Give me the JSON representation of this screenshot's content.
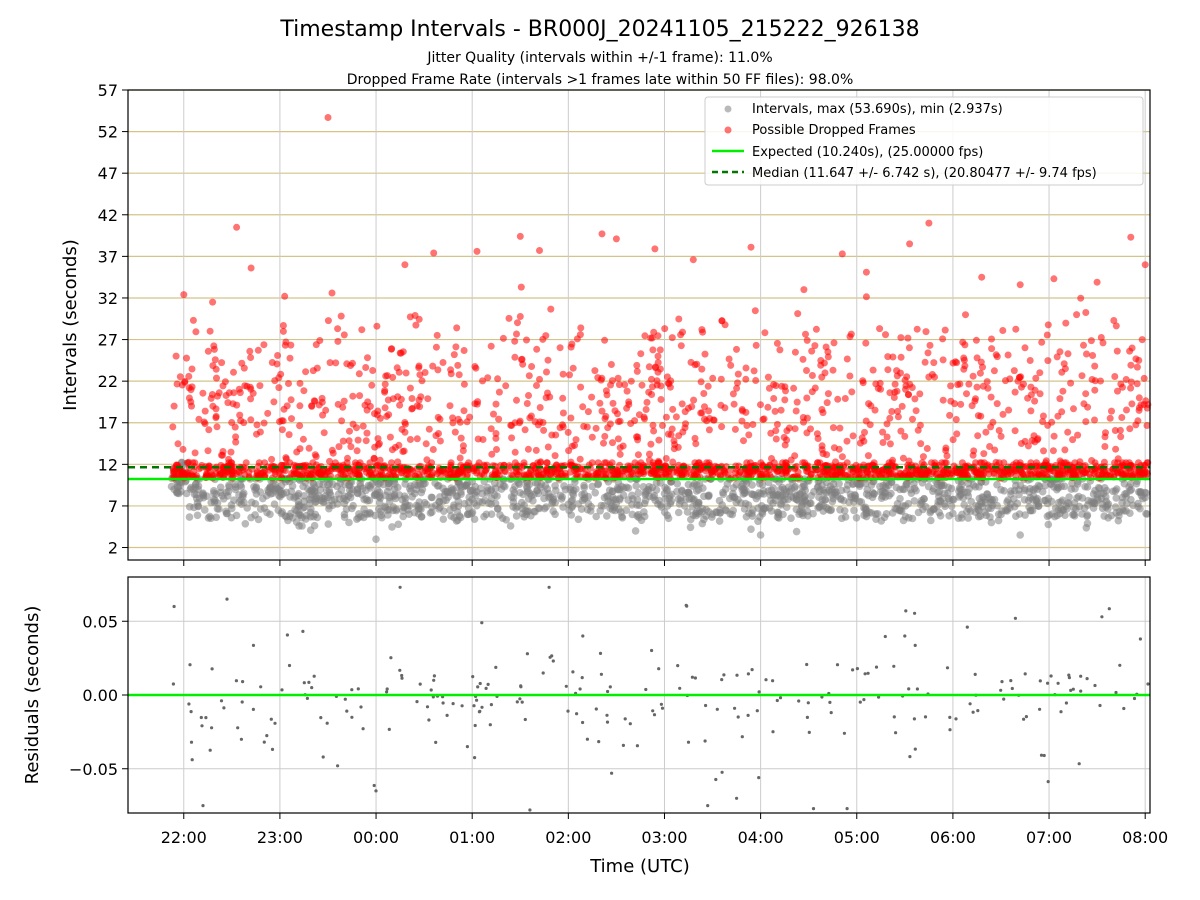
{
  "chart_data": [
    {
      "type": "scatter",
      "title": "Timestamp Intervals - BR000J_20241105_215222_926138",
      "subtitle_lines": [
        "Jitter Quality (intervals within +/-1 frame): 11.0%",
        "Dropped Frame Rate (intervals >1 frames late within 50 FF files): 98.0%"
      ],
      "ylabel": "Intervals (seconds)",
      "ylim": [
        0.5,
        57
      ],
      "yticks": [
        2,
        7,
        12,
        17,
        22,
        27,
        32,
        37,
        42,
        47,
        52,
        57
      ],
      "grid": true,
      "legend_placement": "top-right",
      "legend": [
        "Intervals, max (53.690s), min (2.937s)",
        "Possible Dropped Frames",
        "Expected (10.240s), (25.00000 fps)",
        "Median (11.647 +/- 6.742 s), (20.80477 +/- 9.74 fps)"
      ],
      "expected_interval": 10.24,
      "median_interval": 11.647,
      "max_interval": 53.69,
      "min_interval": 2.937,
      "x_start_hour": 21.87,
      "x_end_hour": 32.03,
      "colors": {
        "intervals": "#808080",
        "dropped": "#ff0000",
        "expected": "#00ee00",
        "median": "#007700"
      },
      "series": [
        {
          "name": "Intervals, max (53.690s), min (2.937s)",
          "sample": [
            [
              21.9,
              9.0
            ],
            [
              22.2,
              8.4
            ],
            [
              22.5,
              6.7
            ],
            [
              22.7,
              5.6
            ],
            [
              22.9,
              9.2
            ],
            [
              23.2,
              4.6
            ],
            [
              23.5,
              8.0
            ],
            [
              23.8,
              5.4
            ],
            [
              24.0,
              3.0
            ],
            [
              24.4,
              6.2
            ],
            [
              24.7,
              5.4
            ],
            [
              25.0,
              7.8
            ],
            [
              25.4,
              4.6
            ],
            [
              25.7,
              6.7
            ],
            [
              26.0,
              7.2
            ],
            [
              26.4,
              5.8
            ],
            [
              26.7,
              4.0
            ],
            [
              27.0,
              8.5
            ],
            [
              27.3,
              5.9
            ],
            [
              27.6,
              7.1
            ],
            [
              27.9,
              4.2
            ],
            [
              28.0,
              3.5
            ],
            [
              28.4,
              6.0
            ],
            [
              28.8,
              8.2
            ],
            [
              29.2,
              5.4
            ],
            [
              29.6,
              7.6
            ],
            [
              30.0,
              6.1
            ],
            [
              30.4,
              5.0
            ],
            [
              30.7,
              3.5
            ],
            [
              31.1,
              7.4
            ],
            [
              31.4,
              4.9
            ],
            [
              31.8,
              6.4
            ],
            [
              32.0,
              8.0
            ]
          ]
        },
        {
          "name": "Possible Dropped Frames",
          "sample": [
            [
              21.9,
              19
            ],
            [
              22.0,
              32.4
            ],
            [
              22.1,
              29.3
            ],
            [
              22.3,
              31.5
            ],
            [
              22.55,
              40.5
            ],
            [
              22.7,
              35.6
            ],
            [
              23.05,
              32.2
            ],
            [
              23.5,
              53.69
            ],
            [
              23.6,
              28.3
            ],
            [
              24.3,
              36
            ],
            [
              24.6,
              37.4
            ],
            [
              25.05,
              37.6
            ],
            [
              25.5,
              39.4
            ],
            [
              25.7,
              37.7
            ],
            [
              26.35,
              39.7
            ],
            [
              26.5,
              39.1
            ],
            [
              26.9,
              37.9
            ],
            [
              27.3,
              36.6
            ],
            [
              27.9,
              38.1
            ],
            [
              28.45,
              33
            ],
            [
              28.85,
              37.3
            ],
            [
              29.1,
              35.1
            ],
            [
              29.55,
              38.5
            ],
            [
              29.75,
              41
            ],
            [
              30.3,
              34.5
            ],
            [
              30.7,
              33.6
            ],
            [
              31.05,
              34.3
            ],
            [
              31.5,
              33.9
            ],
            [
              31.85,
              39.3
            ],
            [
              32.0,
              36
            ]
          ]
        }
      ]
    },
    {
      "type": "scatter",
      "ylabel": "Residuals (seconds)",
      "xlabel": "Time (UTC)",
      "ylim": [
        -0.08,
        0.08
      ],
      "yticks": [
        0.05,
        0.0,
        -0.05
      ],
      "ytick_labels": [
        "0.05",
        "0.00",
        "−0.05"
      ],
      "xticks": [
        "22:00",
        "23:00",
        "00:00",
        "01:00",
        "02:00",
        "03:00",
        "04:00",
        "05:00",
        "06:00",
        "07:00",
        "08:00"
      ],
      "xtick_hours": [
        22,
        23,
        24,
        25,
        26,
        27,
        28,
        29,
        30,
        31,
        32
      ],
      "grid": true,
      "baseline": 0.0,
      "colors": {
        "points": "#666666",
        "baseline": "#00ee00"
      },
      "sample": [
        [
          21.9,
          0.06
        ],
        [
          22.2,
          -0.075
        ],
        [
          22.45,
          0.065
        ],
        [
          22.6,
          -0.03
        ],
        [
          23.1,
          0.02
        ],
        [
          23.45,
          -0.042
        ],
        [
          23.6,
          -0.048
        ],
        [
          24.0,
          -0.065
        ],
        [
          24.25,
          0.073
        ],
        [
          24.6,
          0.01
        ],
        [
          24.95,
          -0.035
        ],
        [
          25.1,
          0.049
        ],
        [
          25.6,
          -0.078
        ],
        [
          25.8,
          0.073
        ],
        [
          26.15,
          0.04
        ],
        [
          26.45,
          -0.053
        ],
        [
          27.25,
          -0.032
        ],
        [
          27.45,
          -0.075
        ],
        [
          27.75,
          -0.07
        ],
        [
          27.98,
          -0.056
        ],
        [
          28.55,
          -0.077
        ],
        [
          28.9,
          -0.077
        ],
        [
          29.5,
          0.04
        ],
        [
          30.15,
          0.046
        ],
        [
          30.65,
          0.052
        ],
        [
          30.95,
          -0.041
        ],
        [
          31.55,
          0.053
        ],
        [
          31.95,
          0.038
        ]
      ]
    }
  ]
}
